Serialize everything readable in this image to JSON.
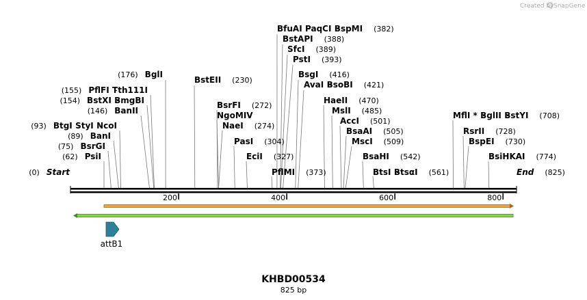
{
  "credit": "Created by",
  "credit_brand": "SnapGene",
  "title": "KHBD00534",
  "size_text": "825 bp",
  "total_bp": 825,
  "scale_ticks": [
    {
      "value": 200,
      "label": "200"
    },
    {
      "value": 400,
      "label": "400"
    },
    {
      "value": 600,
      "label": "600"
    },
    {
      "value": 800,
      "label": "800"
    }
  ],
  "sites": [
    {
      "id": "start",
      "bp": 0,
      "pos_label": "(0)",
      "names": [
        "Start"
      ],
      "italic": true,
      "side": "left"
    },
    {
      "id": "psii",
      "bp": 62,
      "pos_label": "(62)",
      "names": [
        "PsiI"
      ],
      "side": "left"
    },
    {
      "id": "bsrgi",
      "bp": 75,
      "pos_label": "(75)",
      "names": [
        "BsrGI"
      ],
      "side": "left"
    },
    {
      "id": "bani",
      "bp": 89,
      "pos_label": "(89)",
      "names": [
        "BanI"
      ],
      "side": "left"
    },
    {
      "id": "btgi",
      "bp": 93,
      "pos_label": "(93)",
      "names": [
        "BtgI",
        "StyI",
        "NcoI"
      ],
      "side": "left"
    },
    {
      "id": "banii",
      "bp": 146,
      "pos_label": "(146)",
      "names": [
        "BanII"
      ],
      "side": "left"
    },
    {
      "id": "bstxi",
      "bp": 154,
      "pos_label": "(154)",
      "names": [
        "BstXI",
        "BmgBI"
      ],
      "side": "left"
    },
    {
      "id": "pflfi",
      "bp": 155,
      "pos_label": "(155)",
      "names": [
        "PflFI",
        "Tth111I"
      ],
      "side": "left"
    },
    {
      "id": "bgli",
      "bp": 176,
      "pos_label": "(176)",
      "names": [
        "BglI"
      ],
      "side": "left"
    },
    {
      "id": "bsteii",
      "bp": 230,
      "pos_label": "(230)",
      "names": [
        "BstEII"
      ],
      "side": "right"
    },
    {
      "id": "bsrfi",
      "bp": 272,
      "pos_label": "(272)",
      "names": [
        "BsrFI"
      ],
      "side": "right"
    },
    {
      "id": "ngomiv",
      "bp": 274,
      "pos_label": "",
      "names": [
        "NgoMIV"
      ],
      "side": "right"
    },
    {
      "id": "naei",
      "bp": 274,
      "pos_label": "(274)",
      "names": [
        "NaeI"
      ],
      "side": "right"
    },
    {
      "id": "pasi",
      "bp": 304,
      "pos_label": "(304)",
      "names": [
        "PasI"
      ],
      "side": "right"
    },
    {
      "id": "ecii",
      "bp": 327,
      "pos_label": "(327)",
      "names": [
        "EciI"
      ],
      "side": "right"
    },
    {
      "id": "pflmi",
      "bp": 373,
      "pos_label": "(373)",
      "names": [
        "PflMI"
      ],
      "side": "right"
    },
    {
      "id": "bfuai",
      "bp": 382,
      "pos_label": "(382)",
      "names": [
        "BfuAI",
        "PaqCI",
        "BspMI"
      ],
      "side": "right"
    },
    {
      "id": "bstapi",
      "bp": 388,
      "pos_label": "(388)",
      "names": [
        "BstAPI"
      ],
      "side": "right"
    },
    {
      "id": "sfci",
      "bp": 389,
      "pos_label": "(389)",
      "names": [
        "SfcI"
      ],
      "side": "right"
    },
    {
      "id": "psti",
      "bp": 393,
      "pos_label": "(393)",
      "names": [
        "PstI"
      ],
      "side": "right"
    },
    {
      "id": "bsgi",
      "bp": 416,
      "pos_label": "(416)",
      "names": [
        "BsgI"
      ],
      "side": "right"
    },
    {
      "id": "avai",
      "bp": 421,
      "pos_label": "(421)",
      "names": [
        "AvaI",
        "BsoBI"
      ],
      "side": "right"
    },
    {
      "id": "haeii",
      "bp": 470,
      "pos_label": "(470)",
      "names": [
        "HaeII"
      ],
      "side": "right"
    },
    {
      "id": "msli",
      "bp": 485,
      "pos_label": "(485)",
      "names": [
        "MslI"
      ],
      "side": "right"
    },
    {
      "id": "acci",
      "bp": 501,
      "pos_label": "(501)",
      "names": [
        "AccI"
      ],
      "side": "right"
    },
    {
      "id": "bsaai",
      "bp": 505,
      "pos_label": "(505)",
      "names": [
        "BsaAI"
      ],
      "side": "right"
    },
    {
      "id": "msci",
      "bp": 509,
      "pos_label": "(509)",
      "names": [
        "MscI"
      ],
      "side": "right"
    },
    {
      "id": "bsahi",
      "bp": 542,
      "pos_label": "(542)",
      "names": [
        "BsaHI"
      ],
      "side": "right"
    },
    {
      "id": "btsi",
      "bp": 561,
      "pos_label": "(561)",
      "names": [
        "BtsI",
        "BtsαI"
      ],
      "side": "right"
    },
    {
      "id": "mlfi",
      "bp": 708,
      "pos_label": "(708)",
      "names": [
        "MflI *",
        "BglII",
        "BstYI"
      ],
      "side": "right"
    },
    {
      "id": "rsrii",
      "bp": 728,
      "pos_label": "(728)",
      "names": [
        "RsrII"
      ],
      "side": "right"
    },
    {
      "id": "bspei",
      "bp": 730,
      "pos_label": "(730)",
      "names": [
        "BspEI"
      ],
      "side": "right"
    },
    {
      "id": "bsihkai",
      "bp": 774,
      "pos_label": "(774)",
      "names": [
        "BsiHKAI"
      ],
      "side": "right"
    },
    {
      "id": "end",
      "bp": 825,
      "pos_label": "(825)",
      "names": [
        "End"
      ],
      "italic": true,
      "side": "right"
    }
  ],
  "features": [
    {
      "name": "orange-arrow",
      "label": "",
      "color": "#f0a030",
      "outline": "#b07010"
    },
    {
      "name": "green-arrow",
      "label": "",
      "color": "#7fdc3c",
      "outline": "#4a9a20"
    },
    {
      "name": "attB1",
      "label": "attB1",
      "color": "#2e7f9a"
    }
  ]
}
